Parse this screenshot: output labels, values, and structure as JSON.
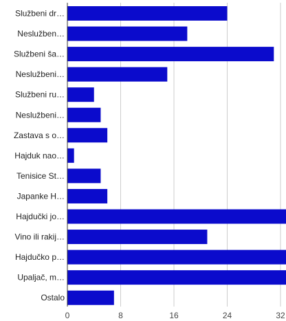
{
  "chart_data": {
    "type": "bar",
    "orientation": "horizontal",
    "categories": [
      "Službeni dr…",
      "Neslužben…",
      "Službeni ša…",
      "Neslužbeni…",
      "Službeni ru…",
      "Neslužbeni…",
      "Zastava s o…",
      "Hajduk nao…",
      "Tenisice St…",
      "Japanke H…",
      "Hajdučki jo…",
      "Vino ili rakij…",
      "Hajdučko p…",
      "Upaljač, m…",
      "Ostalo"
    ],
    "values": [
      24,
      18,
      31,
      15,
      4,
      5,
      6,
      1,
      5,
      6,
      33,
      21,
      33,
      33,
      7
    ],
    "x_ticks": [
      0,
      8,
      16,
      24,
      32
    ],
    "xlim": [
      0,
      32
    ],
    "grid": true,
    "bar_color": "#0b0bcc"
  }
}
